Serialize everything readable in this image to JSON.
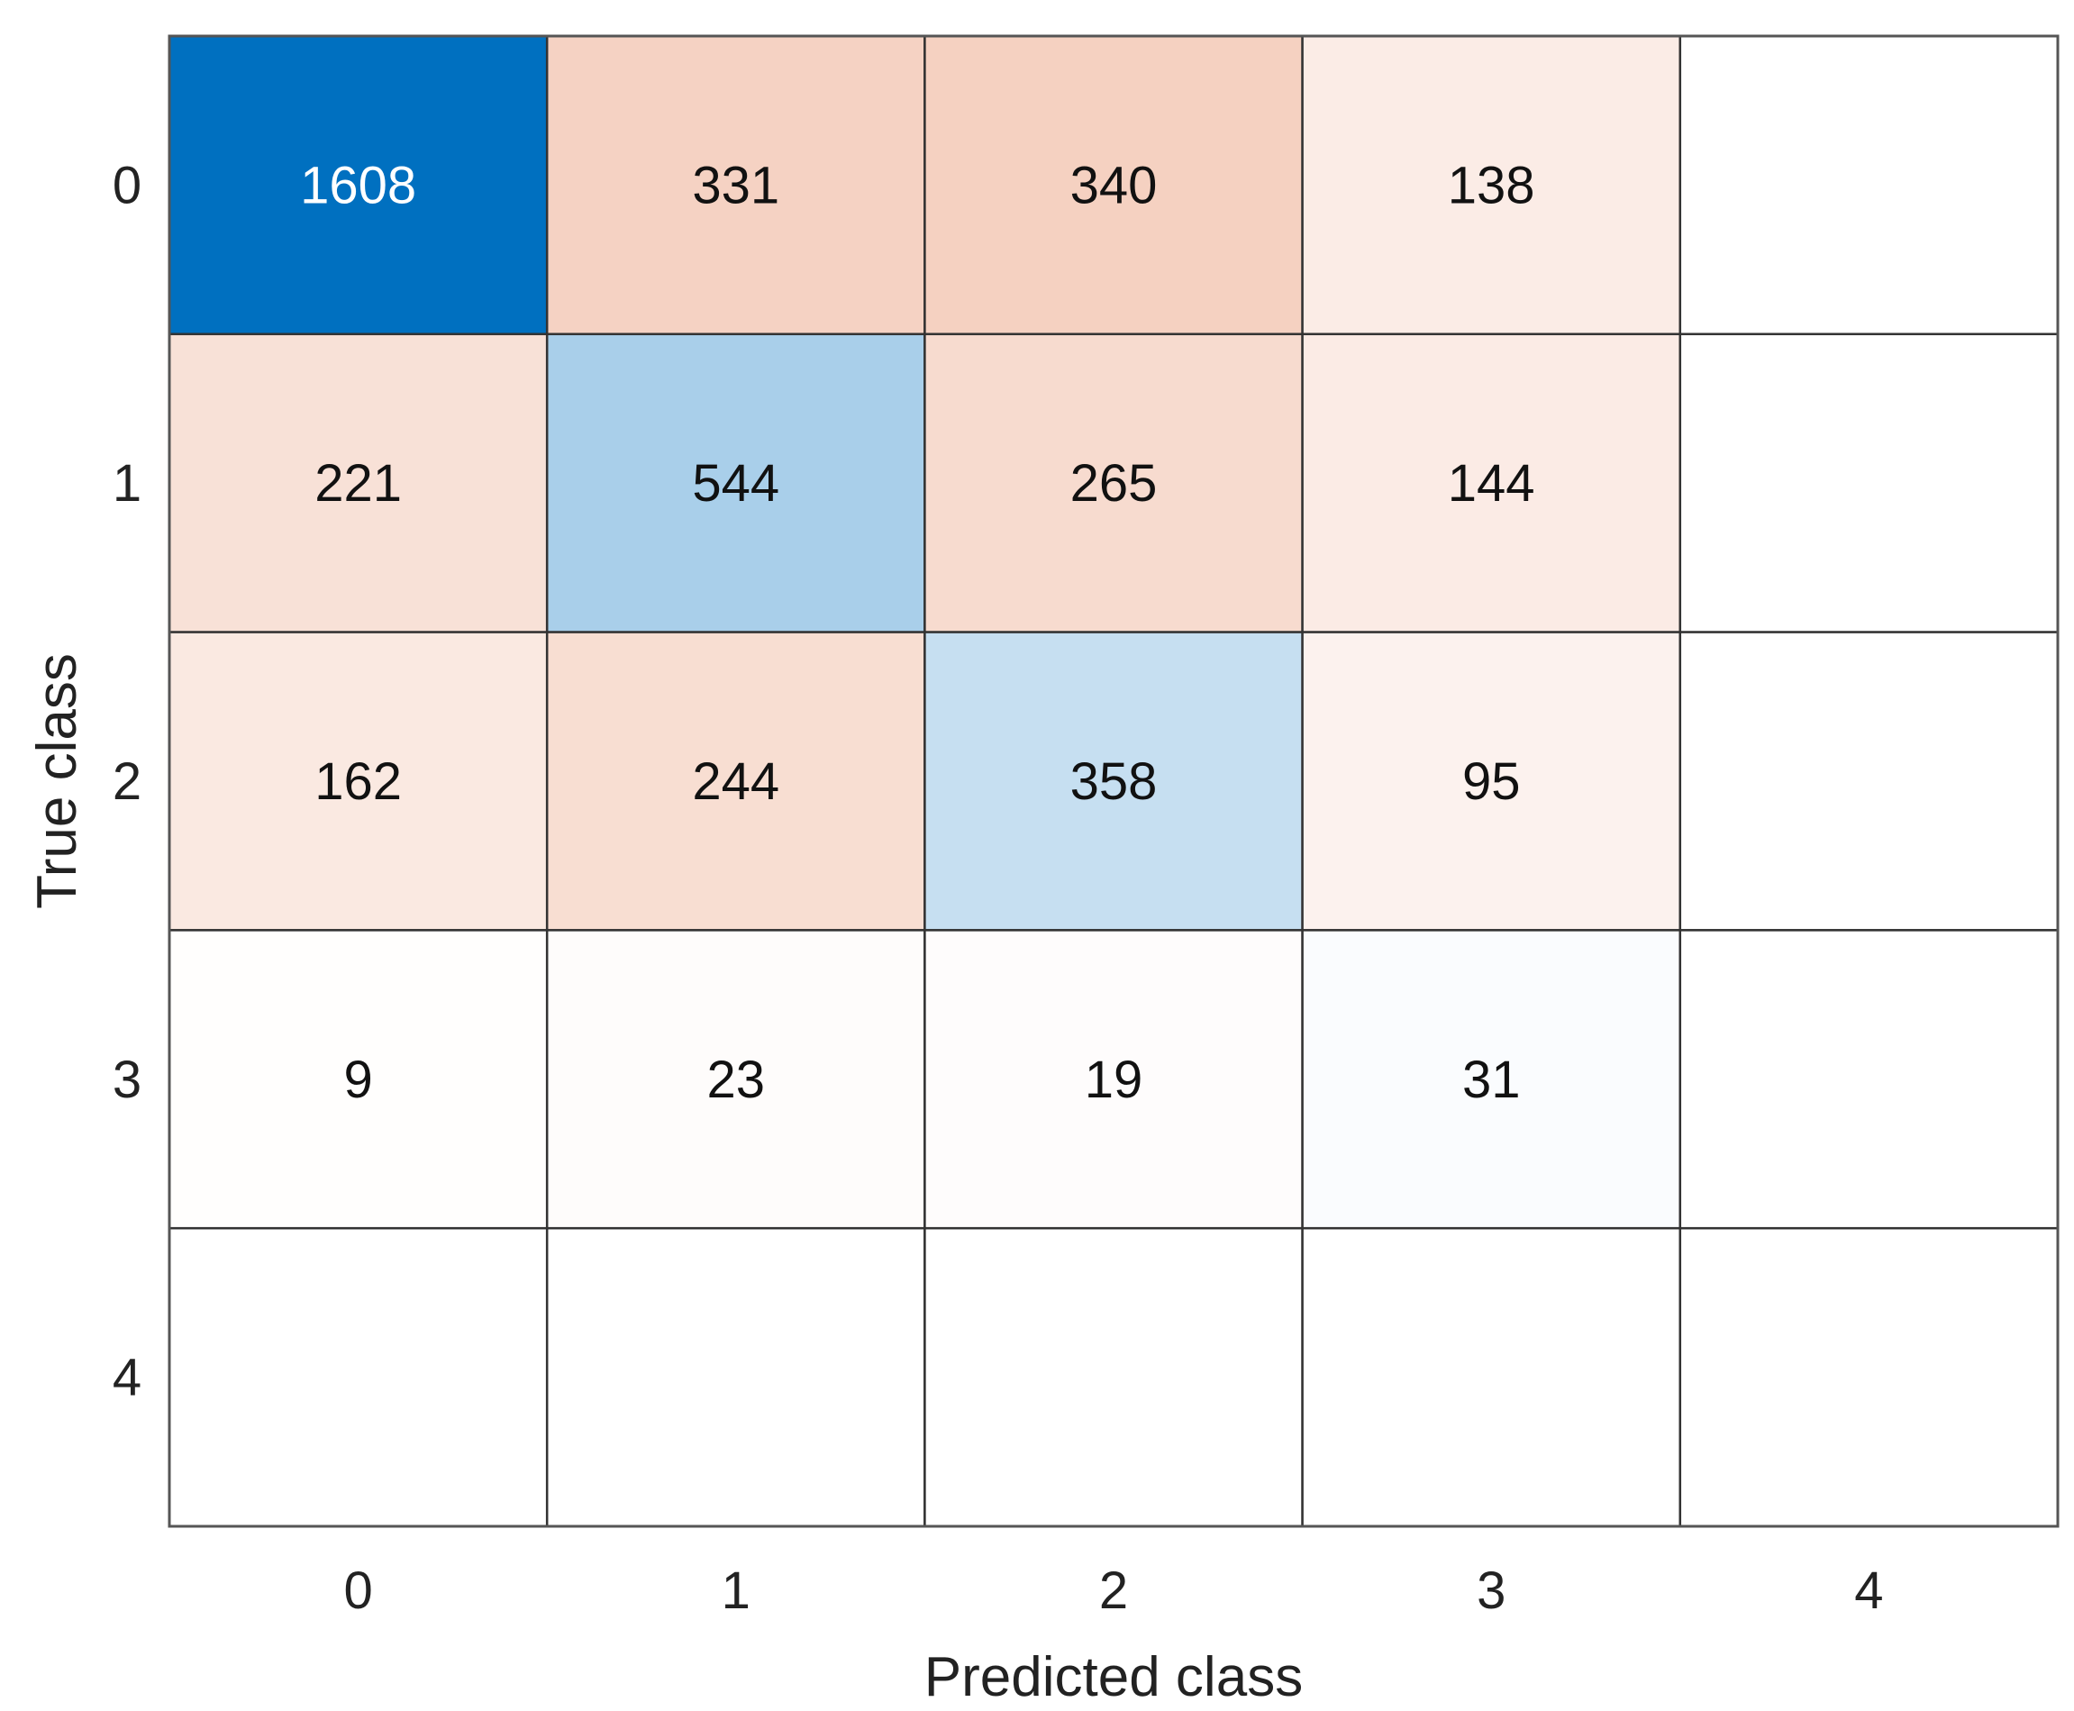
{
  "chart_data": {
    "type": "heatmap",
    "title": "",
    "xlabel": "Predicted class",
    "ylabel": "True class",
    "x_categories": [
      "0",
      "1",
      "2",
      "3",
      "4"
    ],
    "y_categories": [
      "0",
      "1",
      "2",
      "3",
      "4"
    ],
    "values": [
      [
        1608,
        331,
        340,
        138,
        null
      ],
      [
        221,
        544,
        265,
        144,
        null
      ],
      [
        162,
        244,
        358,
        95,
        null
      ],
      [
        9,
        23,
        19,
        31,
        null
      ],
      [
        null,
        null,
        null,
        null,
        null
      ]
    ],
    "grid": true,
    "colors": {
      "diagonal": "#0070C0",
      "off_diagonal": "#D95319",
      "empty": "#FFFFFF",
      "grid_line": "#333333"
    }
  }
}
